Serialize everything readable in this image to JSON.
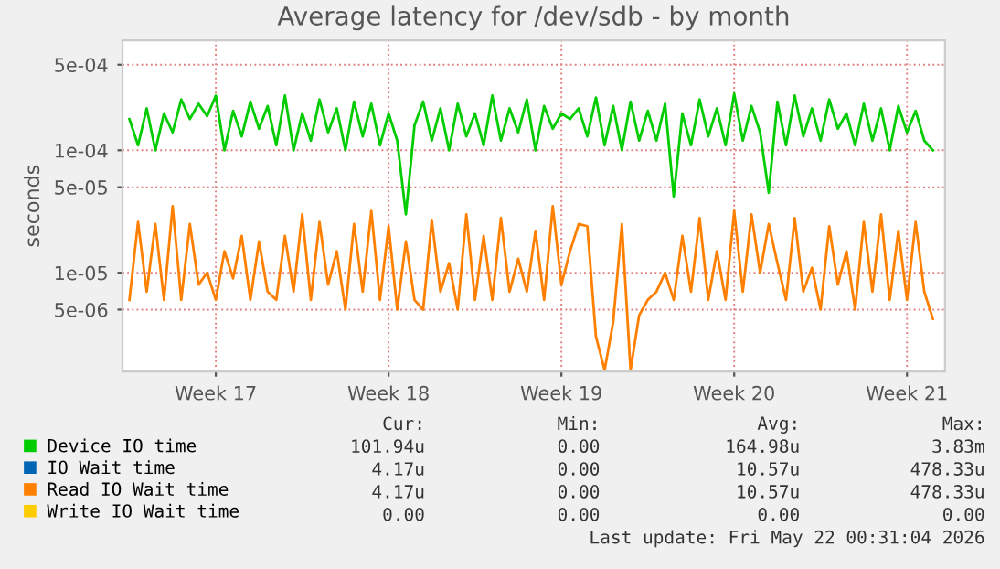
{
  "chart_data": {
    "type": "line",
    "title": "Average latency for /dev/sdb - by month",
    "ylabel": "seconds",
    "categories": [
      null,
      null,
      null,
      null,
      null,
      null,
      null,
      null,
      null,
      null,
      "Week 17",
      null,
      null,
      null,
      null,
      null,
      null,
      null,
      null,
      null,
      null,
      null,
      null,
      null,
      null,
      null,
      null,
      null,
      null,
      null,
      "Week 18",
      null,
      null,
      null,
      null,
      null,
      null,
      null,
      null,
      null,
      null,
      null,
      null,
      null,
      null,
      null,
      null,
      null,
      null,
      null,
      "Week 19",
      null,
      null,
      null,
      null,
      null,
      null,
      null,
      null,
      null,
      null,
      null,
      null,
      null,
      null,
      null,
      null,
      null,
      null,
      null,
      "Week 20",
      null,
      null,
      null,
      null,
      null,
      null,
      null,
      null,
      null,
      null,
      null,
      null,
      null,
      null,
      null,
      null,
      null,
      null,
      null,
      "Week 21",
      null,
      null,
      null
    ],
    "series": [
      {
        "name": "Device IO time",
        "color": "#00cc00",
        "values": [
          0.00018,
          0.00011,
          0.00022,
          0.0001,
          0.0002,
          0.00014,
          0.00026,
          0.00018,
          0.00024,
          0.00019,
          0.00028,
          0.0001,
          0.00021,
          0.00013,
          0.00025,
          0.00015,
          0.00023,
          0.00011,
          0.00028,
          0.0001,
          0.0002,
          0.00012,
          0.00026,
          0.00014,
          0.00022,
          0.0001,
          0.00025,
          0.00013,
          0.00024,
          0.00011,
          0.0002,
          0.00012,
          3e-05,
          0.00016,
          0.00025,
          0.00012,
          0.00022,
          0.0001,
          0.00024,
          0.00013,
          0.0002,
          0.00011,
          0.00028,
          0.00012,
          0.00022,
          0.00014,
          0.00026,
          0.0001,
          0.00023,
          0.00015,
          0.0002,
          0.00018,
          0.00022,
          0.00013,
          0.00027,
          0.00011,
          0.00023,
          0.0001,
          0.00025,
          0.00012,
          0.00021,
          0.00012,
          0.00024,
          4.2e-05,
          0.0002,
          0.00011,
          0.00026,
          0.00013,
          0.00022,
          0.00011,
          0.00029,
          0.00012,
          0.00023,
          0.00014,
          4.5e-05,
          0.00025,
          0.00011,
          0.00028,
          0.00013,
          0.00022,
          0.00012,
          0.00026,
          0.00015,
          0.0002,
          0.00011,
          0.00024,
          0.00012,
          0.00022,
          0.0001,
          0.00023,
          0.00014,
          0.00021,
          0.00012,
          0.0001
        ]
      },
      {
        "name": "IO Wait time",
        "color": "#0066b3",
        "values": [
          null,
          null,
          null,
          null,
          null,
          null,
          null,
          null,
          null,
          null,
          null,
          null,
          null,
          null,
          null,
          null,
          null,
          null,
          null,
          null,
          null,
          null,
          null,
          null,
          null,
          null,
          null,
          null,
          null,
          null,
          null,
          null,
          null,
          null,
          null,
          null,
          null,
          null,
          null,
          null,
          null,
          null,
          null,
          null,
          null,
          null,
          null,
          null,
          null,
          null,
          null,
          null,
          null,
          null,
          null,
          null,
          null,
          null,
          null,
          null,
          null,
          null,
          null,
          null,
          null,
          null,
          null,
          null,
          null,
          null,
          null,
          null,
          null,
          null,
          null,
          null,
          null,
          null,
          null,
          null,
          null,
          null,
          null,
          null,
          null,
          null,
          null,
          null,
          null,
          null,
          null,
          null,
          null,
          null
        ]
      },
      {
        "name": "Read IO Wait time",
        "color": "#ff8000",
        "values": [
          6e-06,
          2.6e-05,
          7e-06,
          2.5e-05,
          6e-06,
          3.5e-05,
          6e-06,
          2.5e-05,
          8e-06,
          1e-05,
          6e-06,
          1.5e-05,
          9e-06,
          2e-05,
          6e-06,
          1.8e-05,
          7e-06,
          6e-06,
          2e-05,
          7e-06,
          3e-05,
          6e-06,
          2.6e-05,
          8e-06,
          1.5e-05,
          5e-06,
          2.5e-05,
          7e-06,
          3.2e-05,
          6e-06,
          2.4e-05,
          5e-06,
          1.8e-05,
          6e-06,
          5e-06,
          2.7e-05,
          7e-06,
          1.2e-05,
          5e-06,
          3e-05,
          6e-06,
          2e-05,
          6e-06,
          2.8e-05,
          7e-06,
          1.3e-05,
          7e-06,
          2.2e-05,
          6e-06,
          3.5e-05,
          8e-06,
          1.5e-05,
          2.5e-05,
          2.4e-05,
          3e-06,
          1.6e-06,
          4e-06,
          2.5e-05,
          1.6e-06,
          4.5e-06,
          6e-06,
          7e-06,
          1e-05,
          6e-06,
          2e-05,
          7e-06,
          2.8e-05,
          6e-06,
          1.5e-05,
          6e-06,
          3.2e-05,
          7e-06,
          3e-05,
          1e-05,
          2.5e-05,
          1.2e-05,
          6e-06,
          2.8e-05,
          7e-06,
          1.1e-05,
          5e-06,
          2.4e-05,
          8e-06,
          1.5e-05,
          5e-06,
          2.6e-05,
          7e-06,
          3e-05,
          6e-06,
          2.2e-05,
          6e-06,
          2.6e-05,
          7e-06,
          4.2e-06
        ]
      },
      {
        "name": "Write IO Wait time",
        "color": "#ffcc00",
        "values": [
          null,
          null,
          null,
          null,
          null,
          null,
          null,
          null,
          null,
          null,
          null,
          null,
          null,
          null,
          null,
          null,
          null,
          null,
          null,
          null,
          null,
          null,
          null,
          null,
          null,
          null,
          null,
          null,
          null,
          null,
          null,
          null,
          null,
          null,
          null,
          null,
          null,
          null,
          null,
          null,
          null,
          null,
          null,
          null,
          null,
          null,
          null,
          null,
          null,
          null,
          null,
          null,
          null,
          null,
          null,
          null,
          null,
          null,
          null,
          null,
          null,
          null,
          null,
          null,
          null,
          null,
          null,
          null,
          null,
          null,
          null,
          null,
          null,
          null,
          null,
          null,
          null,
          null,
          null,
          null,
          null,
          null,
          null,
          null,
          null,
          null,
          null,
          null,
          null,
          null,
          null,
          null,
          null,
          null
        ]
      }
    ],
    "log": "y",
    "ylim": [
      1.56e-06,
      0.00079
    ],
    "yticks": [
      {
        "value": 5e-06,
        "label": "5e-06"
      },
      {
        "value": 1e-05,
        "label": "1e-05"
      },
      {
        "value": 5e-05,
        "label": "5e-05"
      },
      {
        "value": 0.0001,
        "label": "1e-04"
      },
      {
        "value": 0.0005,
        "label": "5e-04"
      }
    ],
    "grid": true,
    "legend": "bottom",
    "line_style": "solid",
    "marker": "none",
    "annotations": [
      "Cur:",
      "Min:",
      "Avg:",
      "Max:",
      "101.94u",
      "0.00",
      "164.98u",
      "3.83m",
      "4.17u",
      "0.00",
      "10.57u",
      "478.33u",
      "4.17u",
      "0.00",
      "10.57u",
      "478.33u",
      "0.00",
      "0.00",
      "0.00",
      "0.00",
      "Last update: Fri May 22 00:31:04 2026"
    ]
  }
}
